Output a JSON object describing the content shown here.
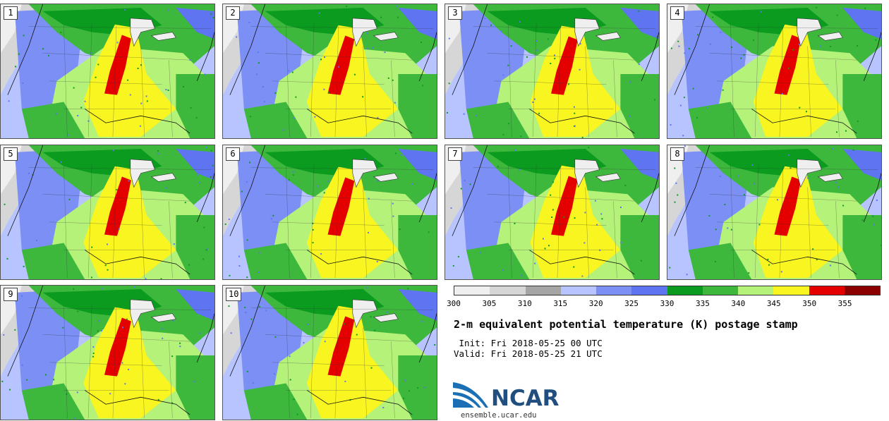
{
  "panels": [
    {
      "label": "1"
    },
    {
      "label": "2"
    },
    {
      "label": "3"
    },
    {
      "label": "4"
    },
    {
      "label": "5"
    },
    {
      "label": "6"
    },
    {
      "label": "7"
    },
    {
      "label": "8"
    },
    {
      "label": "9"
    },
    {
      "label": "10"
    }
  ],
  "colorbar": {
    "colors": [
      "#efefef",
      "#d6d6d6",
      "#a5a5a5",
      "#b7c4ff",
      "#7b8ff5",
      "#5f74f0",
      "#0a9b1f",
      "#3db83d",
      "#b5f27a",
      "#f8f520",
      "#e50000",
      "#8b0000"
    ],
    "ticks": [
      "300",
      "305",
      "310",
      "315",
      "320",
      "325",
      "330",
      "335",
      "340",
      "345",
      "350",
      "355"
    ]
  },
  "title": "2-m equivalent potential temperature (K) postage stamp",
  "init": " Init: Fri 2018-05-25 00 UTC",
  "valid": "Valid: Fri 2018-05-25 21 UTC",
  "logo": {
    "text": "NCAR",
    "url": "ensemble.ucar.edu"
  }
}
